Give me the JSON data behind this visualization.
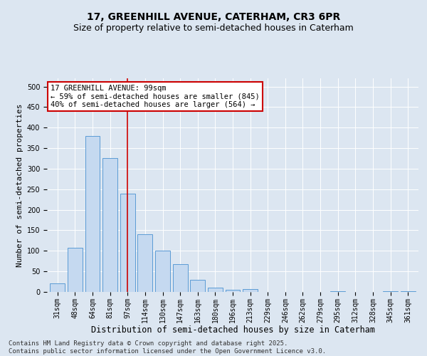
{
  "title1": "17, GREENHILL AVENUE, CATERHAM, CR3 6PR",
  "title2": "Size of property relative to semi-detached houses in Caterham",
  "xlabel": "Distribution of semi-detached houses by size in Caterham",
  "ylabel": "Number of semi-detached properties",
  "categories": [
    "31sqm",
    "48sqm",
    "64sqm",
    "81sqm",
    "97sqm",
    "114sqm",
    "130sqm",
    "147sqm",
    "163sqm",
    "180sqm",
    "196sqm",
    "213sqm",
    "229sqm",
    "246sqm",
    "262sqm",
    "279sqm",
    "295sqm",
    "312sqm",
    "328sqm",
    "345sqm",
    "361sqm"
  ],
  "values": [
    20,
    107,
    380,
    325,
    240,
    140,
    100,
    68,
    30,
    10,
    5,
    7,
    0,
    0,
    0,
    0,
    2,
    0,
    0,
    1,
    2
  ],
  "bar_color": "#c5d9f0",
  "bar_edge_color": "#5b9bd5",
  "vline_x_index": 4,
  "vline_color": "#cc0000",
  "annotation_line1": "17 GREENHILL AVENUE: 99sqm",
  "annotation_line2": "← 59% of semi-detached houses are smaller (845)",
  "annotation_line3": "40% of semi-detached houses are larger (564) →",
  "annotation_box_color": "#ffffff",
  "annotation_box_edge": "#cc0000",
  "ylim": [
    0,
    520
  ],
  "yticks": [
    0,
    50,
    100,
    150,
    200,
    250,
    300,
    350,
    400,
    450,
    500
  ],
  "background_color": "#dce6f1",
  "plot_bg_color": "#dce6f1",
  "footer_text": "Contains HM Land Registry data © Crown copyright and database right 2025.\nContains public sector information licensed under the Open Government Licence v3.0.",
  "title1_fontsize": 10,
  "title2_fontsize": 9,
  "xlabel_fontsize": 8.5,
  "ylabel_fontsize": 8,
  "tick_fontsize": 7,
  "annotation_fontsize": 7.5,
  "footer_fontsize": 6.5
}
